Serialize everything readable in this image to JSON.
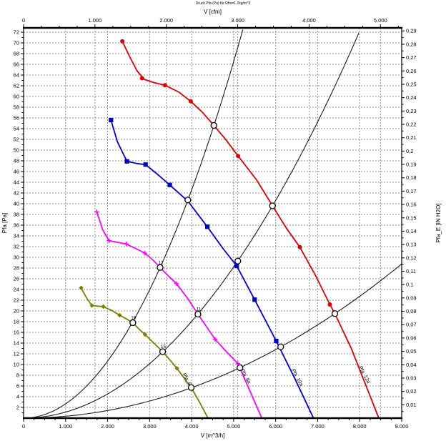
{
  "chart_data": {
    "type": "line",
    "title": "Druck Pfa (Pa) für Rho=1.2kg/m^3",
    "xlabel_bottom": "V [m^3/h]",
    "xlabel_top": "V [cfm]",
    "ylabel_left": "Pfa [Pa]",
    "ylabel_right": "Pfa_E [IN H2O]",
    "x_range_m3h": [
      0,
      9000
    ],
    "y_range_pa": [
      0,
      72.8
    ],
    "bottom_ticks": [
      [
        0,
        "0"
      ],
      [
        1000,
        "1.000"
      ],
      [
        2000,
        "2.000"
      ],
      [
        3000,
        "3.000"
      ],
      [
        4000,
        "4.000"
      ],
      [
        5000,
        "5.000"
      ],
      [
        6000,
        "6.000"
      ],
      [
        7000,
        "7.000"
      ],
      [
        8000,
        "8.000"
      ],
      [
        9000,
        "9.000"
      ]
    ],
    "bottom_minor_step": 250,
    "top_ticks_cfm": [
      [
        0,
        "0"
      ],
      [
        1000,
        "1.000"
      ],
      [
        2000,
        "2.000"
      ],
      [
        3000,
        "3.000"
      ],
      [
        4000,
        "4.000"
      ],
      [
        5000,
        "5.000"
      ]
    ],
    "top_minor_step_cfm": 250,
    "cfm_to_m3h": 1.699,
    "left_axis": {
      "start": 2,
      "end": 72,
      "step": 2,
      "minor_step": 1
    },
    "right_axis": {
      "start": 0.01,
      "end": 0.29,
      "step": 0.01,
      "minor_step": 0.005,
      "pa_per_unit": 249.089,
      "decimal_separator": ","
    },
    "grid": {
      "horizontal_step_pa": 2,
      "vertical_step_m3h": 1000,
      "vertical_cfm_lines": [
        1000,
        2000,
        3000,
        4000,
        5000
      ],
      "style": "dashed"
    },
    "series": [
      {
        "id": "fan-12a",
        "label": "Pfa_12a",
        "color": "#e00000",
        "marker": "circle",
        "curve": [
          [
            2350,
            70.3
          ],
          [
            2540,
            67.2
          ],
          [
            2700,
            64.8
          ],
          [
            2870,
            63.2
          ],
          [
            3100,
            62.6
          ],
          [
            3365,
            62.1
          ],
          [
            3700,
            60.8
          ],
          [
            3980,
            59.1
          ],
          [
            4250,
            57.1
          ],
          [
            4530,
            54.6
          ],
          [
            4820,
            51.9
          ],
          [
            5105,
            48.9
          ],
          [
            5550,
            44.4
          ],
          [
            5925,
            39.6
          ],
          [
            6250,
            35.5
          ],
          [
            6575,
            31.9
          ],
          [
            6950,
            26.6
          ],
          [
            7290,
            21.2
          ],
          [
            7410,
            19.5
          ],
          [
            7800,
            13.0
          ],
          [
            8455,
            0
          ]
        ],
        "points": [
          [
            2350,
            70.3
          ],
          [
            2820,
            63.4
          ],
          [
            3365,
            62.1
          ],
          [
            3980,
            59.1
          ],
          [
            5105,
            48.9
          ],
          [
            6575,
            31.9
          ],
          [
            7290,
            21.2
          ]
        ],
        "name_label_pos": [
          7980,
          9.5
        ]
      },
      {
        "id": "fan-10a",
        "label": "Pfa_10a",
        "color": "#0000dd",
        "marker": "square",
        "curve": [
          [
            2080,
            55.6
          ],
          [
            2230,
            51.6
          ],
          [
            2460,
            47.9
          ],
          [
            2700,
            47.5
          ],
          [
            2904,
            47.3
          ],
          [
            3200,
            45.4
          ],
          [
            3480,
            43.5
          ],
          [
            3910,
            40.5
          ],
          [
            4374,
            35.7
          ],
          [
            4750,
            31.6
          ],
          [
            5073,
            28.4
          ],
          [
            5500,
            22.1
          ],
          [
            6013,
            14.4
          ],
          [
            6450,
            7.5
          ],
          [
            6900,
            0
          ]
        ],
        "points": [
          [
            2080,
            55.6
          ],
          [
            2460,
            47.9
          ],
          [
            2904,
            47.3
          ],
          [
            3480,
            43.5
          ],
          [
            4374,
            35.7
          ],
          [
            5073,
            28.4
          ],
          [
            5500,
            22.1
          ],
          [
            6013,
            14.4
          ]
        ],
        "name_label_pos": [
          6380,
          9.0
        ]
      },
      {
        "id": "fan-8a",
        "label": "Pfa_8a",
        "color": "#ff00ff",
        "marker": "plus",
        "curve": [
          [
            1742,
            38.5
          ],
          [
            1880,
            35.2
          ],
          [
            2033,
            33.1
          ],
          [
            2240,
            32.8
          ],
          [
            2443,
            32.5
          ],
          [
            2680,
            31.6
          ],
          [
            2886,
            30.8
          ],
          [
            3080,
            29.5
          ],
          [
            3250,
            28.1
          ],
          [
            3450,
            26.5
          ],
          [
            3638,
            25.1
          ],
          [
            3900,
            22.4
          ],
          [
            4150,
            19.4
          ],
          [
            4560,
            14.7
          ],
          [
            4850,
            12.2
          ],
          [
            5100,
            10.2
          ],
          [
            5670,
            0
          ]
        ],
        "points": [
          [
            1742,
            38.5
          ],
          [
            2033,
            33.1
          ],
          [
            2443,
            32.5
          ],
          [
            2886,
            30.8
          ],
          [
            3638,
            25.1
          ],
          [
            4560,
            14.7
          ],
          [
            5100,
            10.2
          ]
        ],
        "name_label_pos": [
          5170,
          9.0
        ]
      },
      {
        "id": "fan-6a",
        "label": "Pfa_6a",
        "color": "#7d7d00",
        "marker": "diamond",
        "curve": [
          [
            1370,
            24.3
          ],
          [
            1500,
            22.4
          ],
          [
            1626,
            21.0
          ],
          [
            1760,
            20.9
          ],
          [
            1899,
            20.8
          ],
          [
            2100,
            20.1
          ],
          [
            2286,
            19.2
          ],
          [
            2450,
            18.5
          ],
          [
            2600,
            17.8
          ],
          [
            2750,
            16.6
          ],
          [
            2890,
            15.6
          ],
          [
            3100,
            14.0
          ],
          [
            3310,
            12.4
          ],
          [
            3480,
            10.9
          ],
          [
            3650,
            9.3
          ],
          [
            3820,
            7.5
          ],
          [
            3990,
            5.7
          ],
          [
            4200,
            2.8
          ],
          [
            4390,
            0
          ]
        ],
        "points": [
          [
            1370,
            24.3
          ],
          [
            1626,
            21.0
          ],
          [
            1899,
            20.8
          ],
          [
            2286,
            19.2
          ],
          [
            2890,
            15.6
          ],
          [
            3650,
            9.3
          ]
        ],
        "name_label_pos": [
          3780,
          8.2
        ]
      }
    ],
    "system_curves": {
      "color": "#1a1a1a",
      "k_values": [
        2.66e-06,
        1.128e-06,
        3.55e-07
      ]
    },
    "operating_points": {
      "marker": "open-circle",
      "points": [
        [
          2600,
          17.8,
          "16"
        ],
        [
          3250,
          28.1,
          "12"
        ],
        [
          3910,
          40.7,
          ""
        ],
        [
          4530,
          54.6,
          ""
        ],
        [
          3310,
          12.4,
          "15"
        ],
        [
          4150,
          19.4,
          "11"
        ],
        [
          5100,
          29.3,
          ""
        ],
        [
          5925,
          39.6,
          ""
        ],
        [
          3990,
          5.7,
          ""
        ],
        [
          5150,
          9.4,
          ""
        ],
        [
          6120,
          13.3,
          ""
        ],
        [
          7410,
          19.5,
          ""
        ]
      ]
    }
  }
}
